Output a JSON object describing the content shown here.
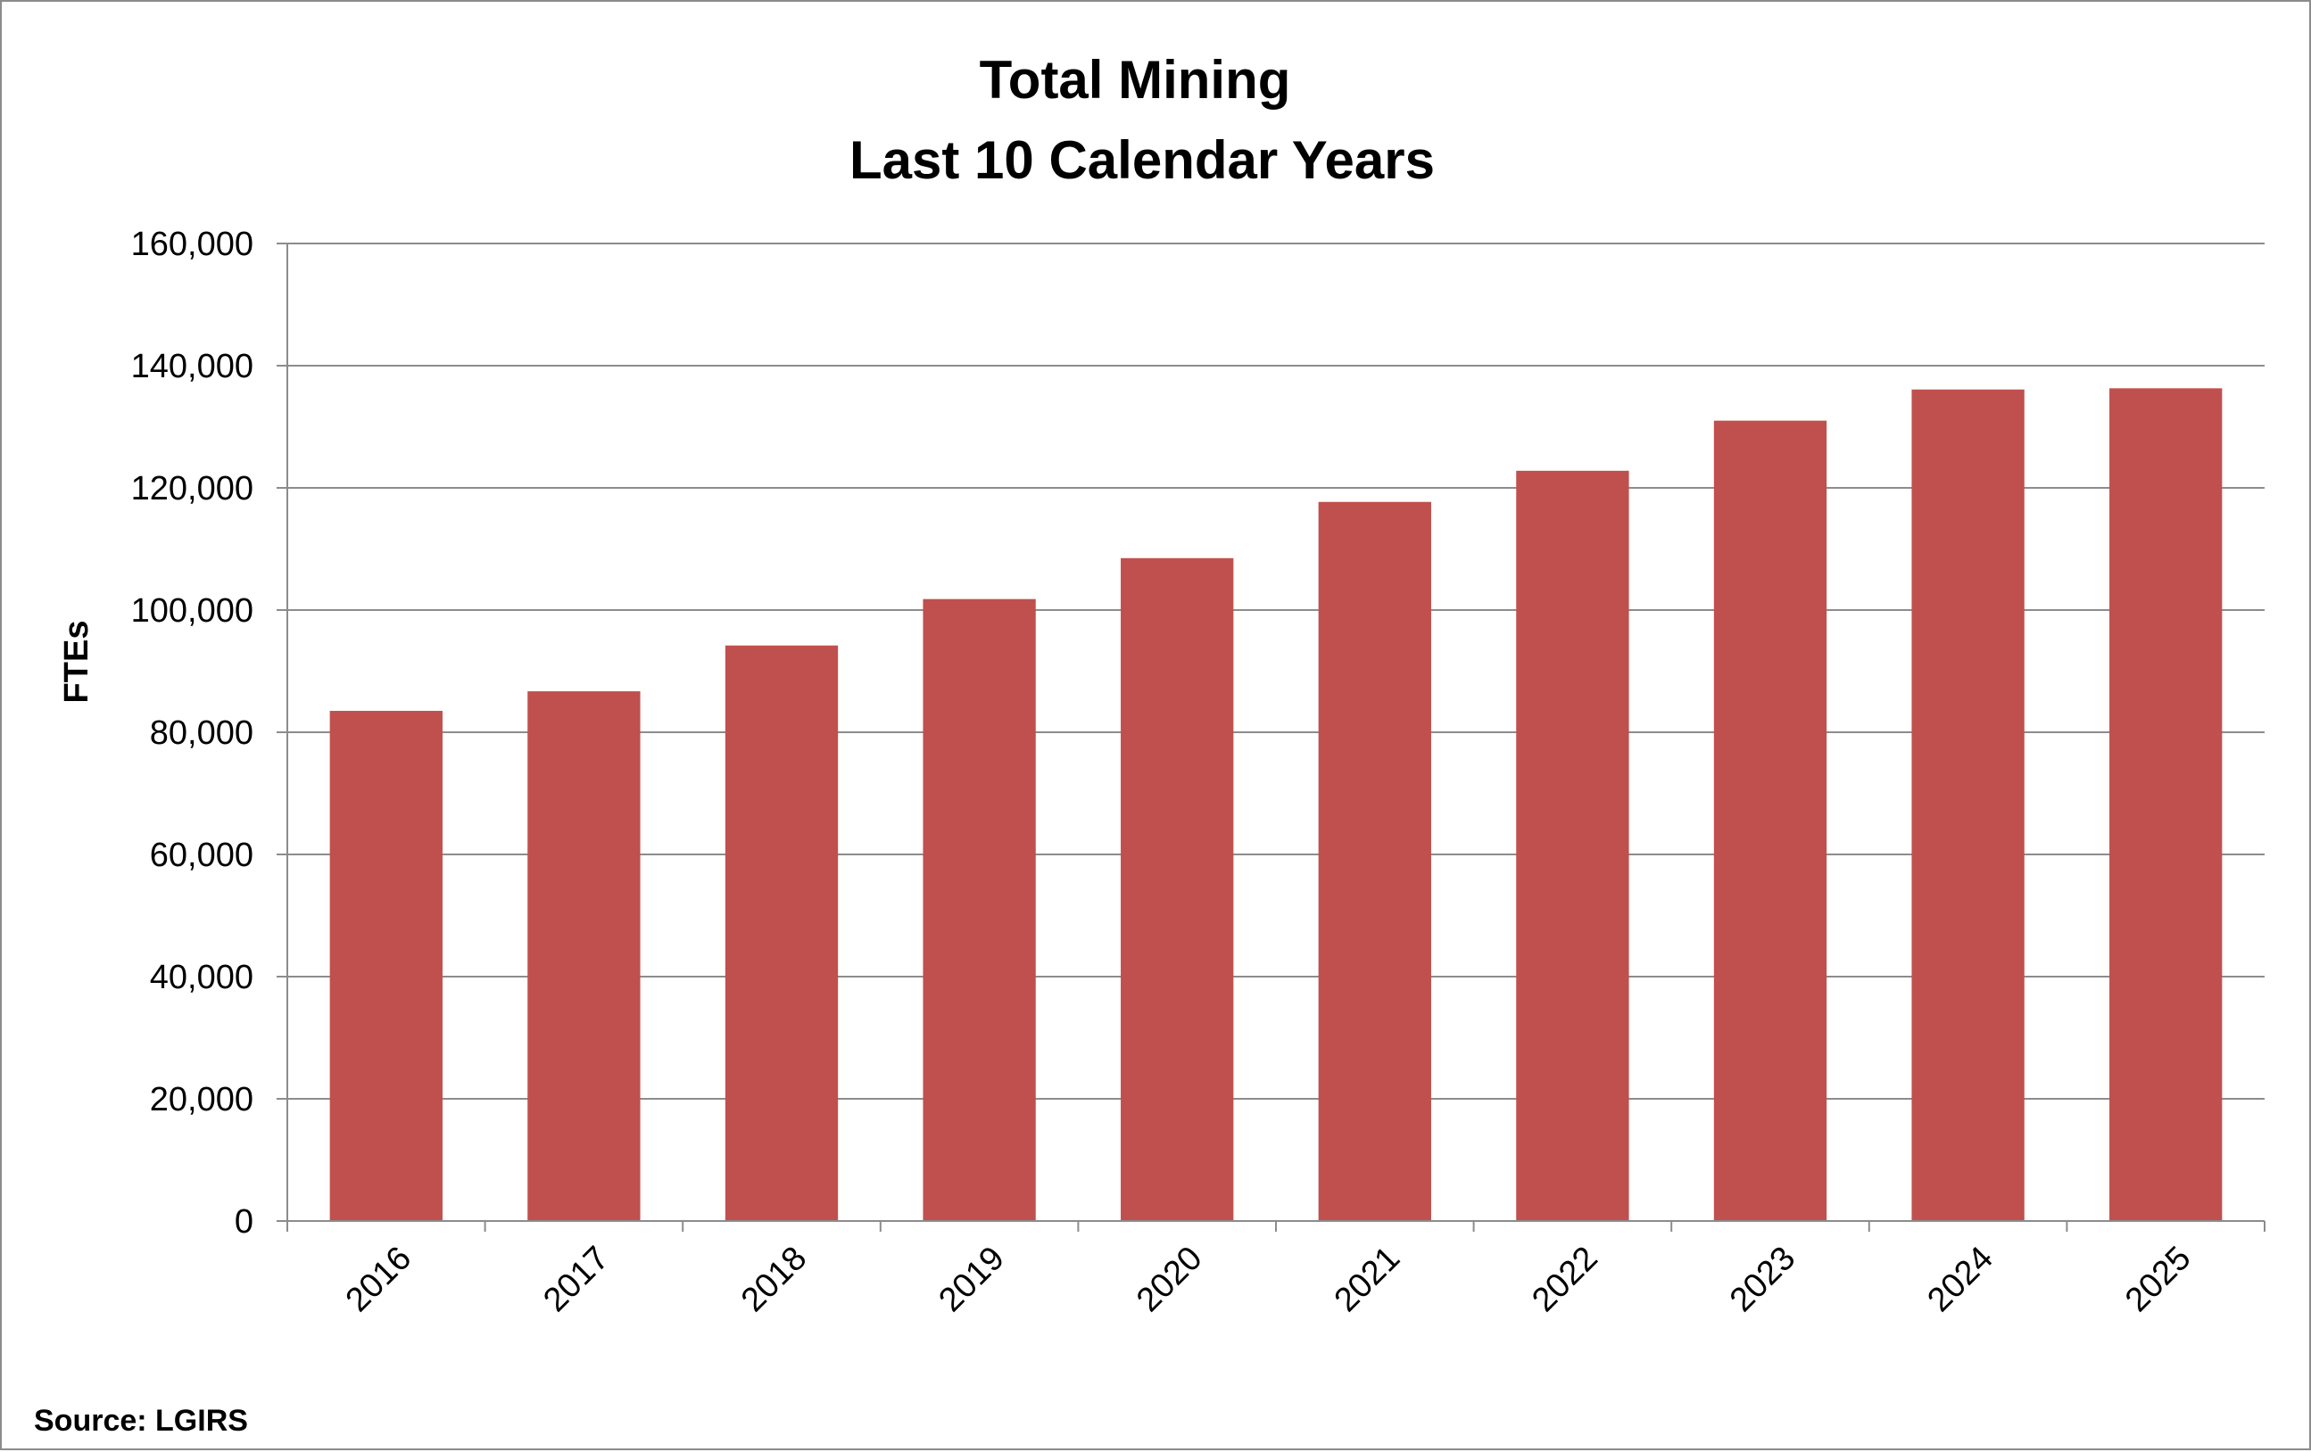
{
  "chart_data": {
    "type": "bar",
    "title_lines": [
      "Total Mining",
      "Last 10 Calendar Years"
    ],
    "title": "Total Mining Last 10 Calendar Years",
    "xlabel": "",
    "ylabel": "FTEs",
    "categories": [
      "2016",
      "2017",
      "2018",
      "2019",
      "2020",
      "2021",
      "2022",
      "2023",
      "2024",
      "2025"
    ],
    "series": [
      {
        "values": [
          83500,
          86700,
          94200,
          101800,
          108500,
          117700,
          122800,
          131000,
          136100,
          136300
        ]
      }
    ],
    "ylim": [
      0,
      160000
    ],
    "yticks": [
      0,
      20000,
      40000,
      60000,
      80000,
      100000,
      120000,
      140000,
      160000
    ],
    "ytick_labels": [
      "0",
      "20,000",
      "40,000",
      "60,000",
      "80,000",
      "100,000",
      "120,000",
      "140,000",
      "160,000"
    ],
    "grid": true,
    "legend": "none",
    "bar_color": "#c0504d",
    "gridline_color": "#8c8c8c"
  },
  "source_note": "Source:  LGIRS"
}
